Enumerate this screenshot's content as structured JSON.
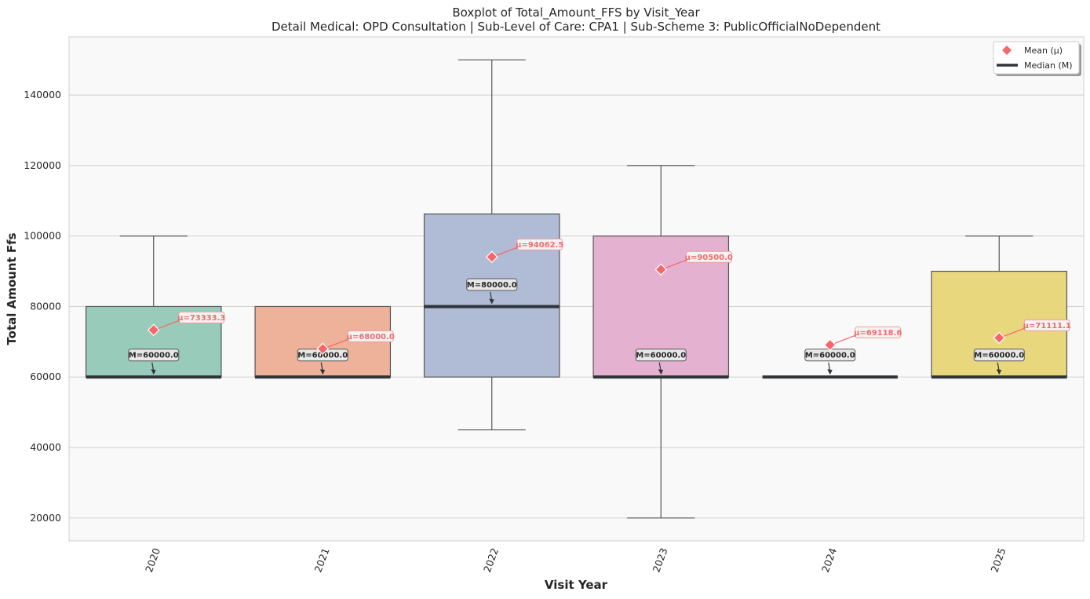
{
  "chart_data": {
    "type": "box",
    "title": "Boxplot of Total_Amount_FFS by Visit_Year",
    "subtitle": "Detail Medical: OPD Consultation | Sub-Level of Care: CPA1 | Sub-Scheme 3: PublicOfficialNoDependent",
    "xlabel": "Visit Year",
    "ylabel": "Total Amount Ffs",
    "ylim": [
      13500,
      156500
    ],
    "yticks": [
      20000,
      40000,
      60000,
      80000,
      100000,
      120000,
      140000
    ],
    "ytick_labels": [
      "20000",
      "40000",
      "60000",
      "80000",
      "100000",
      "120000",
      "140000"
    ],
    "grid": true,
    "legend_position": "top-right",
    "legend": [
      {
        "label": "Mean (μ)",
        "marker": "diamond",
        "color": "#f5676b"
      },
      {
        "label": "Median (M)",
        "marker": "line",
        "color": "#2f3539"
      }
    ],
    "categories": [
      "2020",
      "2021",
      "2022",
      "2023",
      "2024",
      "2025"
    ],
    "boxes": [
      {
        "category": "2020",
        "whisker_low": 60000,
        "q1": 60000,
        "median": 60000,
        "q3": 80000,
        "whisker_high": 100000,
        "mean": 73333.3,
        "color": "#98cbba",
        "median_label": "M=60000.0",
        "mean_label": "μ=73333.3"
      },
      {
        "category": "2021",
        "whisker_low": 60000,
        "q1": 60000,
        "median": 60000,
        "q3": 80000,
        "whisker_high": 80000,
        "mean": 68000.0,
        "color": "#eeb19a",
        "median_label": "M=60000.0",
        "mean_label": "μ=68000.0"
      },
      {
        "category": "2022",
        "whisker_low": 45000,
        "q1": 60000,
        "median": 80000,
        "q3": 106250,
        "whisker_high": 150000,
        "mean": 94062.5,
        "color": "#b0bbd5",
        "median_label": "M=80000.0",
        "mean_label": "μ=94062.5"
      },
      {
        "category": "2023",
        "whisker_low": 20000,
        "q1": 60000,
        "median": 60000,
        "q3": 100000,
        "whisker_high": 120000,
        "mean": 90500.0,
        "color": "#e4b1d1",
        "median_label": "M=60000.0",
        "mean_label": "μ=90500.0"
      },
      {
        "category": "2024",
        "whisker_low": 60000,
        "q1": 60000,
        "median": 60000,
        "q3": 60000,
        "whisker_high": 60000,
        "mean": 69118.6,
        "color": "#cfe5a6",
        "median_label": "M=60000.0",
        "mean_label": "μ=69118.6"
      },
      {
        "category": "2025",
        "whisker_low": 60000,
        "q1": 60000,
        "median": 60000,
        "q3": 90000,
        "whisker_high": 100000,
        "mean": 71111.1,
        "color": "#e9d77e",
        "median_label": "M=60000.0",
        "mean_label": "μ=71111.1"
      }
    ]
  }
}
